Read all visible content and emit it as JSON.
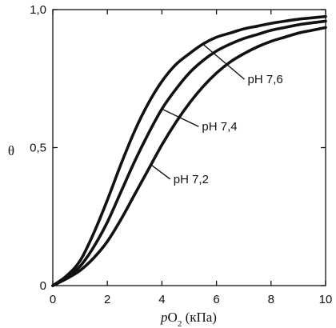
{
  "chart_data": {
    "type": "line",
    "xlabel_prefix": "p",
    "xlabel_main": "O",
    "xlabel_sub": "2",
    "xlabel_unit": " (кПа)",
    "ylabel": "θ",
    "xlim": [
      0,
      10
    ],
    "ylim": [
      0,
      1
    ],
    "xticks": [
      {
        "value": 0,
        "label": "0"
      },
      {
        "value": 2,
        "label": "2"
      },
      {
        "value": 4,
        "label": "4"
      },
      {
        "value": 6,
        "label": "6"
      },
      {
        "value": 8,
        "label": "8"
      },
      {
        "value": 10,
        "label": "10"
      }
    ],
    "yticks": [
      {
        "value": 0,
        "label": "0"
      },
      {
        "value": 0.5,
        "label": "0,5"
      },
      {
        "value": 1,
        "label": "1,0"
      }
    ],
    "grid": false,
    "series": [
      {
        "name": "pH 7,6",
        "x": [
          0,
          0.5,
          1,
          1.5,
          2,
          2.5,
          3,
          3.5,
          4,
          4.5,
          5,
          5.5,
          6,
          6.5,
          7,
          7.5,
          8,
          8.5,
          9,
          9.5,
          10
        ],
        "y": [
          0,
          0.035,
          0.09,
          0.19,
          0.31,
          0.44,
          0.56,
          0.66,
          0.74,
          0.8,
          0.84,
          0.875,
          0.9,
          0.915,
          0.93,
          0.94,
          0.95,
          0.958,
          0.965,
          0.97,
          0.975
        ]
      },
      {
        "name": "pH 7,4",
        "x": [
          0,
          0.5,
          1,
          1.5,
          2,
          2.5,
          3,
          3.5,
          4,
          4.5,
          5,
          5.5,
          6,
          6.5,
          7,
          7.5,
          8,
          8.5,
          9,
          9.5,
          10
        ],
        "y": [
          0,
          0.03,
          0.07,
          0.14,
          0.23,
          0.34,
          0.45,
          0.55,
          0.64,
          0.71,
          0.77,
          0.815,
          0.85,
          0.875,
          0.895,
          0.91,
          0.925,
          0.935,
          0.945,
          0.952,
          0.958
        ]
      },
      {
        "name": "pH 7,2",
        "x": [
          0,
          0.5,
          1,
          1.5,
          2,
          2.5,
          3,
          3.5,
          4,
          4.5,
          5,
          5.5,
          6,
          6.5,
          7,
          7.5,
          8,
          8.5,
          9,
          9.5,
          10
        ],
        "y": [
          0,
          0.025,
          0.055,
          0.1,
          0.16,
          0.24,
          0.33,
          0.42,
          0.51,
          0.59,
          0.66,
          0.72,
          0.77,
          0.81,
          0.84,
          0.865,
          0.885,
          0.9,
          0.915,
          0.925,
          0.935
        ]
      }
    ],
    "annotations": [
      {
        "series": "pH 7,6",
        "text": "pH 7,6",
        "at_x": 5.5
      },
      {
        "series": "pH 7,4",
        "text": "pH 7,4",
        "at_x": 4.0
      },
      {
        "series": "pH 7,2",
        "text": "pH 7,2",
        "at_x": 3.6
      }
    ]
  }
}
